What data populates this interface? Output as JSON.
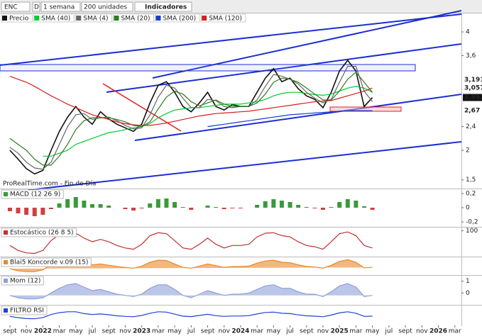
{
  "toolbar": {
    "symbol": "ENC",
    "mode": "D",
    "period": "1 semana",
    "units": "200 unidades",
    "indicators": "Indicadores"
  },
  "chart_data": [
    {
      "type": "line",
      "source": "ProRealTime.com - Fin de Día",
      "x": [
        0,
        1,
        2,
        3,
        4,
        5,
        6,
        7,
        8,
        9,
        10,
        11,
        12,
        13,
        14,
        15,
        16,
        17,
        18,
        19,
        20,
        21,
        22,
        23,
        24,
        25,
        26,
        27,
        28,
        29,
        30,
        31,
        32,
        33,
        34,
        35,
        36,
        37,
        38,
        39,
        40,
        41,
        42,
        43,
        44
      ],
      "xlim": [
        -1.2,
        54.8
      ],
      "xticks": [
        {
          "value": 0,
          "label": "sept"
        },
        {
          "value": 2,
          "label": "nov"
        },
        {
          "value": 4,
          "label": "2022"
        },
        {
          "value": 6,
          "label": "mar"
        },
        {
          "value": 8,
          "label": "may"
        },
        {
          "value": 10,
          "label": "jul"
        },
        {
          "value": 12,
          "label": "sept"
        },
        {
          "value": 14,
          "label": "nov"
        },
        {
          "value": 16,
          "label": "2023"
        },
        {
          "value": 18,
          "label": "mar"
        },
        {
          "value": 20,
          "label": "may"
        },
        {
          "value": 22,
          "label": "jul"
        },
        {
          "value": 24,
          "label": "sept"
        },
        {
          "value": 26,
          "label": "nov"
        },
        {
          "value": 28,
          "label": "2024"
        },
        {
          "value": 30,
          "label": "mar"
        },
        {
          "value": 32,
          "label": "may"
        },
        {
          "value": 34,
          "label": "jul"
        },
        {
          "value": 36,
          "label": "sept"
        },
        {
          "value": 38,
          "label": "nov"
        },
        {
          "value": 40,
          "label": "2025"
        },
        {
          "value": 42,
          "label": "mar"
        },
        {
          "value": 44,
          "label": "may"
        },
        {
          "value": 46,
          "label": "jul"
        },
        {
          "value": 48,
          "label": "sept"
        },
        {
          "value": 50,
          "label": "nov"
        },
        {
          "value": 52,
          "label": "2026"
        },
        {
          "value": 54,
          "label": "mar"
        }
      ],
      "ylim": [
        1.365,
        4.3
      ],
      "yticks": [
        4,
        {
          "value": 3.6,
          "label": "3,6"
        },
        {
          "value": 2.4,
          "label": "2,4"
        },
        2,
        {
          "value": 1.5,
          "label": "1,5"
        }
      ],
      "series": [
        {
          "name": "Precio",
          "color": "#111111",
          "values": [
            2.0,
            1.85,
            1.69,
            1.6,
            1.66,
            2.0,
            2.32,
            2.56,
            2.74,
            2.56,
            2.44,
            2.65,
            2.53,
            2.44,
            2.38,
            2.32,
            2.44,
            2.8,
            3.1,
            3.16,
            2.98,
            2.74,
            2.65,
            2.8,
            2.98,
            2.74,
            2.68,
            2.77,
            2.74,
            2.74,
            2.98,
            3.22,
            3.38,
            3.16,
            3.22,
            3.04,
            2.92,
            2.86,
            2.72,
            2.98,
            3.34,
            3.52,
            3.34,
            2.74,
            2.89
          ]
        },
        {
          "name": "SMA (40)",
          "color": "#00cc33",
          "values": [
            null,
            null,
            null,
            null,
            1.9,
            1.9,
            1.95,
            2.0,
            2.1,
            2.15,
            2.2,
            2.25,
            2.3,
            2.32,
            2.35,
            2.38,
            2.4,
            2.45,
            2.55,
            2.62,
            2.68,
            2.7,
            2.72,
            2.72,
            2.74,
            2.76,
            2.78,
            2.78,
            2.78,
            2.8,
            2.82,
            2.86,
            2.92,
            2.96,
            2.98,
            2.98,
            2.96,
            2.94,
            2.93,
            2.95,
            3.0,
            3.05,
            3.08,
            3.05,
            2.98
          ]
        },
        {
          "name": "SMA (4)",
          "color": "#666666",
          "values": [
            2.05,
            1.95,
            1.8,
            1.7,
            1.68,
            1.8,
            2.1,
            2.4,
            2.6,
            2.62,
            2.52,
            2.55,
            2.56,
            2.5,
            2.42,
            2.36,
            2.38,
            2.6,
            2.9,
            3.1,
            3.05,
            2.88,
            2.72,
            2.72,
            2.86,
            2.84,
            2.74,
            2.72,
            2.74,
            2.74,
            2.85,
            3.08,
            3.28,
            3.25,
            3.2,
            3.12,
            2.98,
            2.88,
            2.8,
            2.86,
            3.15,
            3.42,
            3.42,
            3.0,
            2.82
          ]
        },
        {
          "name": "SMA (20)",
          "color": "#2e7d1e",
          "values": [
            2.2,
            2.1,
            2.0,
            1.85,
            1.75,
            1.75,
            1.9,
            2.1,
            2.35,
            2.5,
            2.55,
            2.55,
            2.55,
            2.52,
            2.48,
            2.42,
            2.4,
            2.48,
            2.7,
            2.9,
            3.0,
            2.95,
            2.82,
            2.75,
            2.8,
            2.85,
            2.78,
            2.74,
            2.74,
            2.74,
            2.8,
            2.95,
            3.15,
            3.22,
            3.2,
            3.15,
            3.05,
            2.95,
            2.85,
            2.85,
            3.0,
            3.2,
            3.32,
            3.15,
            2.98
          ]
        },
        {
          "name": "SMA (200)",
          "color": "#1a3fcc",
          "values": [
            null,
            null,
            null,
            null,
            null,
            null,
            null,
            null,
            null,
            null,
            null,
            null,
            null,
            null,
            null,
            null,
            null,
            null,
            null,
            null,
            null,
            null,
            null,
            null,
            2.4,
            2.42,
            2.44,
            2.46,
            2.48,
            2.5,
            2.52,
            2.54,
            2.56,
            2.58,
            2.6,
            2.61,
            2.62,
            2.63,
            2.64,
            2.65,
            2.66,
            2.67,
            2.67,
            2.67,
            2.67
          ]
        },
        {
          "name": "SMA (120)",
          "color": "#d32020",
          "values": [
            3.25,
            3.2,
            3.15,
            3.08,
            3.0,
            2.92,
            2.85,
            2.78,
            2.72,
            2.66,
            2.6,
            2.56,
            2.52,
            2.48,
            2.45,
            2.43,
            2.42,
            2.42,
            2.44,
            2.46,
            2.49,
            2.52,
            2.55,
            2.58,
            2.6,
            2.62,
            2.63,
            2.64,
            2.65,
            2.66,
            2.68,
            2.7,
            2.72,
            2.74,
            2.76,
            2.78,
            2.8,
            2.82,
            2.83,
            2.84,
            2.88,
            2.92,
            2.96,
            3.0,
            3.05
          ]
        }
      ],
      "price_labels": [
        {
          "value": 3.191,
          "label": "3,191",
          "color": "#2e7d1e"
        },
        {
          "value": 3.057,
          "label": "3,057",
          "color": "#d32020"
        },
        {
          "value": 2.892,
          "label": "2,892",
          "color": "#111111"
        },
        {
          "value": 2.67,
          "label": "2,67",
          "color": "#00aa22"
        }
      ]
    },
    {
      "type": "bar",
      "title": "MACD (12 26 9)",
      "ylim": [
        -0.25,
        0.25
      ],
      "yticks": [
        {
          "value": 0.2,
          "label": "0,2"
        },
        0,
        {
          "value": -0.2,
          "label": "-0,2"
        }
      ],
      "series": [
        {
          "name": "MACD",
          "color": "#3a9a3a",
          "values": [
            -0.05,
            -0.08,
            -0.1,
            -0.12,
            -0.1,
            -0.02,
            0.06,
            0.12,
            0.15,
            0.1,
            0.05,
            0.05,
            0.03,
            0,
            -0.02,
            -0.04,
            -0.01,
            0.06,
            0.12,
            0.13,
            0.08,
            0.01,
            -0.03,
            0,
            0.03,
            0.01,
            -0.02,
            -0.01,
            -0.01,
            0,
            0.04,
            0.09,
            0.12,
            0.1,
            0.08,
            0.04,
            0.01,
            -0.01,
            -0.03,
            0.01,
            0.08,
            0.12,
            0.1,
            0.02,
            -0.03
          ]
        }
      ]
    },
    {
      "type": "line",
      "title": "Estocástico (26 8 5)",
      "ylim": [
        -5,
        110
      ],
      "yticks": [
        100
      ],
      "series": [
        {
          "name": "%K",
          "color": "#c03030",
          "values": [
            40,
            20,
            10,
            8,
            20,
            60,
            85,
            92,
            90,
            70,
            55,
            65,
            55,
            40,
            30,
            25,
            45,
            80,
            92,
            88,
            60,
            30,
            25,
            45,
            70,
            45,
            30,
            40,
            40,
            45,
            75,
            90,
            92,
            80,
            75,
            55,
            40,
            35,
            25,
            55,
            88,
            95,
            80,
            40,
            30
          ]
        }
      ]
    },
    {
      "type": "area",
      "title": "Blai5 Koncorde v.09 (15)",
      "ylim": [
        -20,
        20
      ],
      "yticks": [],
      "series": [
        {
          "name": "Koncorde",
          "color": "#e8892a",
          "values": [
            -5,
            -10,
            -12,
            -12,
            -8,
            5,
            12,
            15,
            14,
            8,
            4,
            6,
            3,
            0,
            -2,
            -4,
            1,
            10,
            15,
            14,
            6,
            -2,
            -4,
            1,
            6,
            2,
            -2,
            0,
            0,
            1,
            8,
            13,
            15,
            10,
            9,
            4,
            0,
            -1,
            -4,
            3,
            12,
            16,
            10,
            -3,
            -2
          ]
        }
      ]
    },
    {
      "type": "area",
      "title": "Mom (12)",
      "ylim": [
        -1,
        1.4
      ],
      "yticks": [
        1,
        0
      ],
      "series": [
        {
          "name": "Mom",
          "color": "#8fa0d8",
          "values": [
            -0.2,
            -0.4,
            -0.5,
            -0.5,
            -0.4,
            0,
            0.4,
            0.7,
            0.8,
            0.5,
            0.2,
            0.3,
            0.1,
            -0.1,
            -0.2,
            -0.3,
            -0.1,
            0.4,
            0.7,
            0.7,
            0.3,
            -0.2,
            -0.4,
            -0.1,
            0.2,
            0,
            -0.2,
            -0.1,
            -0.1,
            0,
            0.3,
            0.6,
            0.7,
            0.4,
            0.4,
            0.1,
            -0.1,
            -0.1,
            -0.3,
            0.1,
            0.6,
            0.8,
            0.5,
            -0.3,
            -0.2
          ]
        }
      ]
    },
    {
      "type": "line",
      "title": "FILTRO RSI",
      "ylim": [
        0,
        100
      ],
      "yticks": [],
      "series": [
        {
          "name": "RSI",
          "color": "#2040d0",
          "values": [
            45,
            38,
            33,
            32,
            38,
            55,
            65,
            70,
            70,
            60,
            55,
            58,
            54,
            48,
            45,
            43,
            50,
            62,
            70,
            68,
            57,
            46,
            44,
            50,
            56,
            49,
            45,
            47,
            47,
            49,
            58,
            66,
            68,
            62,
            60,
            53,
            48,
            46,
            43,
            52,
            64,
            70,
            62,
            45,
            46
          ]
        }
      ]
    }
  ]
}
